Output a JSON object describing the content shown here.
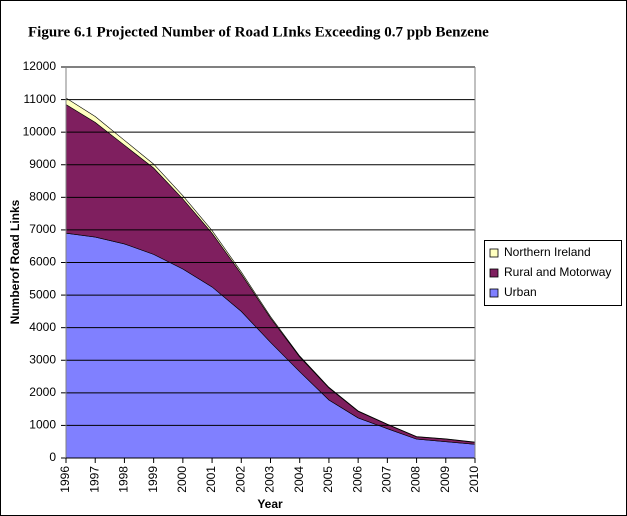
{
  "chart_data": {
    "type": "stacked_area",
    "title": "Figure 6.1 Projected Number of Road LInks Exceeding 0.7 ppb Benzene",
    "x_label": "Year",
    "y_label": "Numberof Road Links",
    "categories": [
      "1996",
      "1997",
      "1998",
      "1999",
      "2000",
      "2001",
      "2002",
      "2003",
      "2004",
      "2005",
      "2006",
      "2007",
      "2008",
      "2009",
      "2010"
    ],
    "series": [
      {
        "name": "Urban",
        "color": "#8080ff",
        "values": [
          6900,
          6780,
          6570,
          6250,
          5800,
          5250,
          4500,
          3550,
          2650,
          1780,
          1230,
          900,
          580,
          500,
          420
        ]
      },
      {
        "name": "Rural and Motorway",
        "color": "#7f1f5f",
        "values": [
          3950,
          3520,
          3030,
          2650,
          2150,
          1650,
          1150,
          750,
          450,
          370,
          200,
          130,
          70,
          80,
          60
        ]
      },
      {
        "name": "Northern Ireland",
        "color": "#ffffc0",
        "values": [
          200,
          180,
          150,
          120,
          100,
          80,
          60,
          40,
          30,
          20,
          15,
          10,
          10,
          10,
          10
        ]
      }
    ],
    "ylim": [
      0,
      12000
    ],
    "yticks": [
      0,
      1000,
      2000,
      3000,
      4000,
      5000,
      6000,
      7000,
      8000,
      9000,
      10000,
      11000,
      12000
    ],
    "grid": true,
    "legend": "right"
  }
}
